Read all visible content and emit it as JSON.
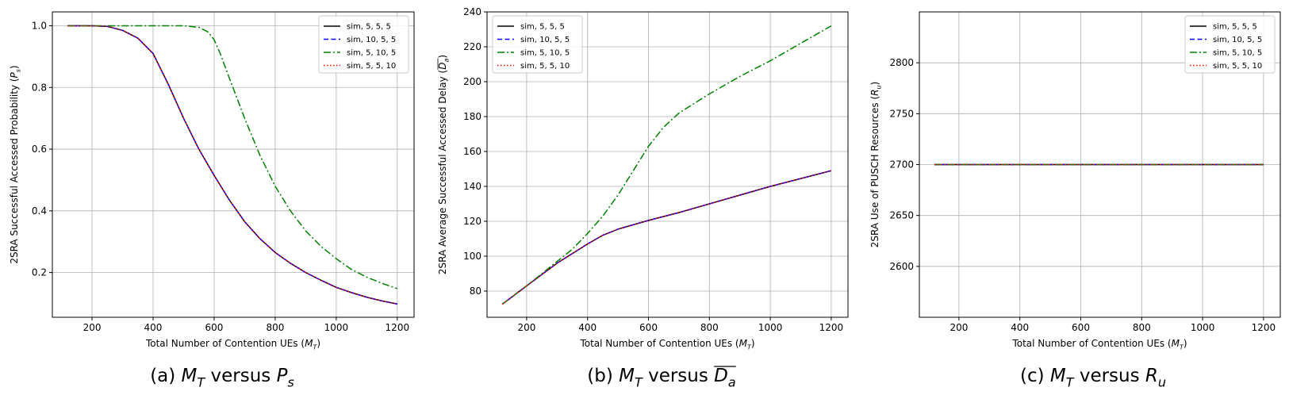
{
  "chart_data": [
    {
      "type": "line",
      "caption": "(a) M_T versus P_s",
      "xlabel": "Total Number of Contention UEs (M_T)",
      "ylabel": "2SRA Successful Accessed Probability (P_s)",
      "xlim": [
        70,
        1255
      ],
      "ylim": [
        0.055,
        1.045
      ],
      "xticks": [
        200,
        400,
        600,
        800,
        1000,
        1200
      ],
      "yticks": [
        0.2,
        0.4,
        0.6,
        0.8,
        1.0
      ],
      "ytick_decimals": 1,
      "grid": true,
      "legend": "top-right",
      "series": [
        {
          "name": "sim, 5, 5, 5",
          "color": "#000000",
          "dash": "solid",
          "x": [
            120,
            150,
            200,
            250,
            300,
            350,
            400,
            450,
            500,
            550,
            600,
            650,
            700,
            750,
            800,
            850,
            900,
            950,
            1000,
            1050,
            1100,
            1150,
            1200
          ],
          "y": [
            1.0,
            1.0,
            1.0,
            0.998,
            0.985,
            0.96,
            0.91,
            0.81,
            0.7,
            0.6,
            0.515,
            0.435,
            0.365,
            0.31,
            0.265,
            0.23,
            0.2,
            0.175,
            0.152,
            0.135,
            0.12,
            0.108,
            0.098
          ]
        },
        {
          "name": "sim, 10, 5, 5",
          "color": "#0000ff",
          "dash": "dashed",
          "x": [
            120,
            150,
            200,
            250,
            300,
            350,
            400,
            450,
            500,
            550,
            600,
            650,
            700,
            750,
            800,
            850,
            900,
            950,
            1000,
            1050,
            1100,
            1150,
            1200
          ],
          "y": [
            1.0,
            1.0,
            1.0,
            0.998,
            0.985,
            0.96,
            0.91,
            0.81,
            0.7,
            0.6,
            0.515,
            0.435,
            0.365,
            0.31,
            0.265,
            0.23,
            0.2,
            0.175,
            0.152,
            0.135,
            0.12,
            0.108,
            0.098
          ]
        },
        {
          "name": "sim, 5, 10, 5",
          "color": "#008000",
          "dash": "dashdot",
          "x": [
            120,
            200,
            300,
            400,
            500,
            550,
            580,
            600,
            620,
            650,
            700,
            750,
            800,
            850,
            900,
            950,
            1000,
            1050,
            1100,
            1150,
            1200
          ],
          "y": [
            1.0,
            1.0,
            1.0,
            1.0,
            1.0,
            0.995,
            0.98,
            0.955,
            0.91,
            0.83,
            0.7,
            0.58,
            0.48,
            0.4,
            0.335,
            0.285,
            0.245,
            0.21,
            0.185,
            0.165,
            0.148
          ]
        },
        {
          "name": "sim, 5, 5, 10",
          "color": "#ff0000",
          "dash": "dotted",
          "x": [
            120,
            150,
            200,
            250,
            300,
            350,
            400,
            450,
            500,
            550,
            600,
            650,
            700,
            750,
            800,
            850,
            900,
            950,
            1000,
            1050,
            1100,
            1150,
            1200
          ],
          "y": [
            1.0,
            1.0,
            1.0,
            0.998,
            0.985,
            0.96,
            0.91,
            0.81,
            0.7,
            0.6,
            0.515,
            0.435,
            0.365,
            0.31,
            0.265,
            0.23,
            0.2,
            0.175,
            0.152,
            0.135,
            0.12,
            0.108,
            0.098
          ]
        }
      ]
    },
    {
      "type": "line",
      "caption": "(b) M_T versus D_a",
      "xlabel": "Total Number of Contention UEs (M_T)",
      "ylabel": "2SRA Average Successful Accessed Delay (D_a)",
      "xlim": [
        70,
        1255
      ],
      "ylim": [
        65,
        240
      ],
      "xticks": [
        200,
        400,
        600,
        800,
        1000,
        1200
      ],
      "yticks": [
        80,
        100,
        120,
        140,
        160,
        180,
        200,
        220,
        240
      ],
      "ytick_decimals": 0,
      "grid": true,
      "legend": "top-left",
      "series": [
        {
          "name": "sim, 5, 5, 5",
          "color": "#000000",
          "dash": "solid",
          "x": [
            120,
            200,
            300,
            400,
            450,
            500,
            550,
            600,
            700,
            800,
            900,
            1000,
            1100,
            1200
          ],
          "y": [
            72.5,
            83,
            96,
            107,
            112,
            115.5,
            118,
            120.5,
            125,
            130,
            135,
            140,
            144.5,
            149
          ]
        },
        {
          "name": "sim, 10, 5, 5",
          "color": "#0000ff",
          "dash": "dashed",
          "x": [
            120,
            200,
            300,
            400,
            450,
            500,
            550,
            600,
            700,
            800,
            900,
            1000,
            1100,
            1200
          ],
          "y": [
            72.5,
            83,
            96,
            107,
            112,
            115.5,
            118,
            120.5,
            125,
            130,
            135,
            140,
            144.5,
            149
          ]
        },
        {
          "name": "sim, 5, 10, 5",
          "color": "#008000",
          "dash": "dashdot",
          "x": [
            120,
            200,
            300,
            350,
            400,
            450,
            500,
            550,
            600,
            650,
            700,
            800,
            900,
            1000,
            1100,
            1200
          ],
          "y": [
            72.5,
            83,
            97,
            104,
            113,
            123,
            135,
            149,
            163,
            174,
            182,
            193,
            203,
            212,
            222,
            232
          ]
        },
        {
          "name": "sim, 5, 5, 10",
          "color": "#ff0000",
          "dash": "dotted",
          "x": [
            120,
            200,
            300,
            400,
            450,
            500,
            550,
            600,
            700,
            800,
            900,
            1000,
            1100,
            1200
          ],
          "y": [
            72.5,
            83,
            96,
            107,
            112,
            115.5,
            118,
            120.5,
            125,
            130,
            135,
            140,
            144.5,
            149
          ]
        }
      ]
    },
    {
      "type": "line",
      "caption": "(c) M_T versus R_u",
      "xlabel": "Total Number of Contention UEs (M_T)",
      "ylabel": "2SRA Use of PUSCH Resources (R_u)",
      "xlim": [
        70,
        1255
      ],
      "ylim": [
        2550,
        2850
      ],
      "xticks": [
        200,
        400,
        600,
        800,
        1000,
        1200
      ],
      "yticks": [
        2600,
        2650,
        2700,
        2750,
        2800
      ],
      "ytick_decimals": 0,
      "grid": true,
      "legend": "top-right",
      "series": [
        {
          "name": "sim, 5, 5, 5",
          "color": "#000000",
          "dash": "solid",
          "x": [
            120,
            1200
          ],
          "y": [
            2700,
            2700
          ]
        },
        {
          "name": "sim, 10, 5, 5",
          "color": "#0000ff",
          "dash": "dashed",
          "x": [
            120,
            1200
          ],
          "y": [
            2700,
            2700
          ]
        },
        {
          "name": "sim, 5, 10, 5",
          "color": "#008000",
          "dash": "dashdot",
          "x": [
            120,
            1200
          ],
          "y": [
            2700,
            2700
          ]
        },
        {
          "name": "sim, 5, 5, 10",
          "color": "#ff0000",
          "dash": "dotted",
          "x": [
            120,
            1200
          ],
          "y": [
            2700,
            2700
          ]
        }
      ]
    }
  ]
}
